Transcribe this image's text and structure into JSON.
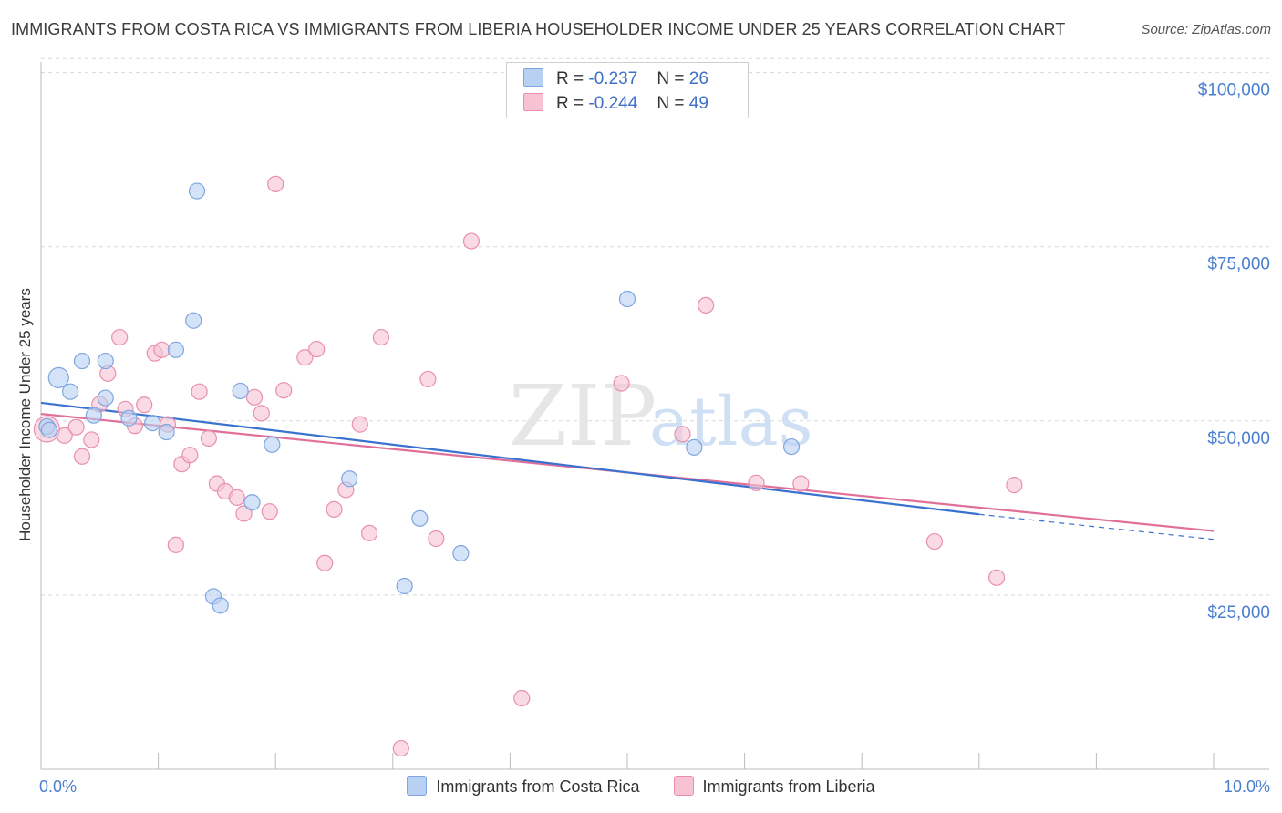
{
  "header": {
    "title": "IMMIGRANTS FROM COSTA RICA VS IMMIGRANTS FROM LIBERIA HOUSEHOLDER INCOME UNDER 25 YEARS CORRELATION CHART",
    "source": "Source: ZipAtlas.com"
  },
  "watermark": {
    "zip": "ZIP",
    "atlas": "atlas"
  },
  "colors": {
    "costa_rica_fill": "#b8d0f2",
    "costa_rica_stroke": "#7ea6e0",
    "costa_rica_line": "#3a72cf",
    "liberia_fill": "#f7c3d3",
    "liberia_stroke": "#e98fad",
    "liberia_line": "#e0709a",
    "grid": "#d8d8d8",
    "tick_text": "#4a7fd0"
  },
  "stats": [
    {
      "r_label": "R =",
      "r_value": "-0.237",
      "n_label": "N =",
      "n_value": "26"
    },
    {
      "r_label": "R =",
      "r_value": "-0.244",
      "n_label": "N =",
      "n_value": "49"
    }
  ],
  "chart_data": {
    "type": "scatter",
    "title": "IMMIGRANTS FROM COSTA RICA VS IMMIGRANTS FROM LIBERIA HOUSEHOLDER INCOME UNDER 25 YEARS CORRELATION CHART",
    "xlabel": "",
    "ylabel": "Householder Income Under 25 years",
    "xlim": [
      0,
      10
    ],
    "ylim": [
      0,
      102000
    ],
    "x_tick_labels": [
      "0.0%",
      "10.0%"
    ],
    "y_ticks": [
      25000,
      50000,
      75000,
      100000
    ],
    "y_tick_labels": [
      "$25,000",
      "$50,000",
      "$75,000",
      "$100,000"
    ],
    "grid": true,
    "legend_position": "bottom",
    "series": [
      {
        "name": "Immigrants from Costa Rica",
        "points": [
          [
            0.05,
            49200
          ],
          [
            0.15,
            56200
          ],
          [
            0.25,
            54200
          ],
          [
            0.35,
            58600
          ],
          [
            0.45,
            50800
          ],
          [
            0.55,
            53300
          ],
          [
            0.55,
            58600
          ],
          [
            0.75,
            50400
          ],
          [
            0.95,
            49700
          ],
          [
            1.07,
            48400
          ],
          [
            1.15,
            60200
          ],
          [
            1.3,
            64400
          ],
          [
            1.33,
            83000
          ],
          [
            1.47,
            24800
          ],
          [
            1.53,
            23500
          ],
          [
            1.7,
            54300
          ],
          [
            1.8,
            38300
          ],
          [
            1.97,
            46600
          ],
          [
            2.63,
            41700
          ],
          [
            3.1,
            26300
          ],
          [
            3.23,
            36000
          ],
          [
            3.58,
            31000
          ],
          [
            5.0,
            67500
          ],
          [
            5.57,
            46200
          ],
          [
            6.4,
            46300
          ],
          [
            0.07,
            48700
          ]
        ],
        "trend": {
          "x0": 0,
          "y0": 52600,
          "x1": 8,
          "y1": 36600,
          "dash_to_x": 10,
          "dash_to_y": 33000
        }
      },
      {
        "name": "Immigrants from Liberia",
        "points": [
          [
            0.05,
            48800
          ],
          [
            0.2,
            47900
          ],
          [
            0.3,
            49100
          ],
          [
            0.35,
            44900
          ],
          [
            0.43,
            47300
          ],
          [
            0.5,
            52400
          ],
          [
            0.57,
            56800
          ],
          [
            0.67,
            62000
          ],
          [
            0.72,
            51700
          ],
          [
            0.8,
            49300
          ],
          [
            0.88,
            52300
          ],
          [
            0.97,
            59700
          ],
          [
            1.03,
            60200
          ],
          [
            1.15,
            32200
          ],
          [
            1.2,
            43800
          ],
          [
            1.27,
            45100
          ],
          [
            1.35,
            54200
          ],
          [
            1.43,
            47500
          ],
          [
            1.5,
            41000
          ],
          [
            1.57,
            39900
          ],
          [
            1.67,
            39000
          ],
          [
            1.73,
            36700
          ],
          [
            1.82,
            53400
          ],
          [
            1.88,
            51100
          ],
          [
            1.95,
            37000
          ],
          [
            2.07,
            54400
          ],
          [
            2.25,
            59100
          ],
          [
            2.35,
            60300
          ],
          [
            2.0,
            84000
          ],
          [
            2.42,
            29600
          ],
          [
            2.5,
            37300
          ],
          [
            2.6,
            40100
          ],
          [
            2.72,
            49500
          ],
          [
            2.8,
            33900
          ],
          [
            2.9,
            62000
          ],
          [
            3.07,
            3000
          ],
          [
            3.3,
            56000
          ],
          [
            3.37,
            33100
          ],
          [
            3.67,
            75800
          ],
          [
            4.1,
            10200
          ],
          [
            4.95,
            55400
          ],
          [
            5.47,
            48100
          ],
          [
            5.67,
            66600
          ],
          [
            6.1,
            41100
          ],
          [
            6.48,
            41000
          ],
          [
            7.62,
            32700
          ],
          [
            8.15,
            27500
          ],
          [
            8.3,
            40800
          ],
          [
            1.08,
            49500
          ]
        ],
        "trend": {
          "x0": 0,
          "y0": 51000,
          "x1": 10,
          "y1": 34200
        }
      }
    ]
  },
  "legend": {
    "items": [
      {
        "label": "Immigrants from Costa Rica"
      },
      {
        "label": "Immigrants from Liberia"
      }
    ]
  }
}
